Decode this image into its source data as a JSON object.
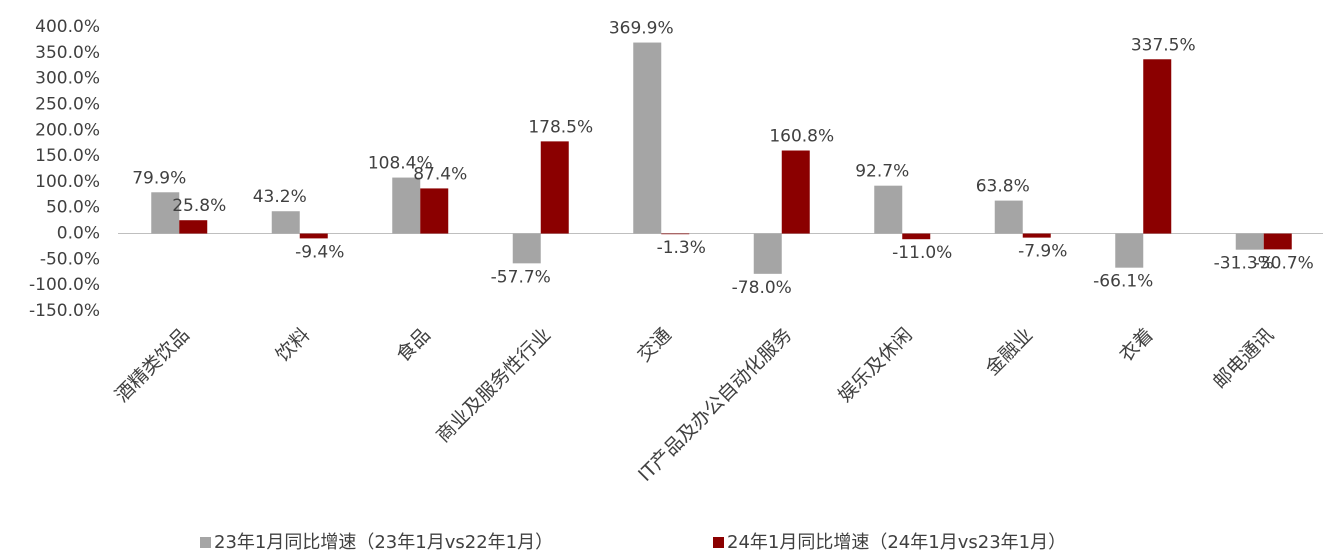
{
  "chart_data": {
    "type": "bar",
    "categories": [
      "酒精类饮品",
      "饮料",
      "食品",
      "商业及服务性行业",
      "交通",
      "IT产品及办公自动化服务",
      "娱乐及休闲",
      "金融业",
      "衣着",
      "邮电通讯"
    ],
    "series": [
      {
        "name": "23年1月同比增速（23年1月vs22年1月）",
        "color": "#a5a5a5",
        "values": [
          79.9,
          43.2,
          108.4,
          -57.7,
          369.9,
          -78.0,
          92.7,
          63.8,
          -66.1,
          -31.3
        ],
        "value_labels": [
          "79.9%",
          "43.2%",
          "108.4%",
          "-57.7%",
          "369.9%",
          "-78.0%",
          "92.7%",
          "63.8%",
          "-66.1%",
          "-31.3%"
        ]
      },
      {
        "name": "24年1月同比增速（24年1月vs23年1月）",
        "color": "#8b0000",
        "values": [
          25.8,
          -9.4,
          87.4,
          178.5,
          -1.3,
          160.8,
          -11.0,
          -7.9,
          337.5,
          -30.7
        ],
        "value_labels": [
          "25.8%",
          "-9.4%",
          "87.4%",
          "178.5%",
          "-1.3%",
          "160.8%",
          "-11.0%",
          "-7.9%",
          "337.5%",
          "-30.7%"
        ]
      }
    ],
    "ylim": [
      -150,
      400
    ],
    "yticks": [
      {
        "value": -150,
        "label": "-150.0%"
      },
      {
        "value": -100,
        "label": "-100.0%"
      },
      {
        "value": -50,
        "label": "-50.0%"
      },
      {
        "value": 0,
        "label": "0.0%"
      },
      {
        "value": 50,
        "label": "50.0%"
      },
      {
        "value": 100,
        "label": "100.0%"
      },
      {
        "value": 150,
        "label": "150.0%"
      },
      {
        "value": 200,
        "label": "200.0%"
      },
      {
        "value": 250,
        "label": "250.0%"
      },
      {
        "value": 300,
        "label": "300.0%"
      },
      {
        "value": 350,
        "label": "350.0%"
      },
      {
        "value": 400,
        "label": "400.0%"
      }
    ],
    "legend": "bottom"
  }
}
